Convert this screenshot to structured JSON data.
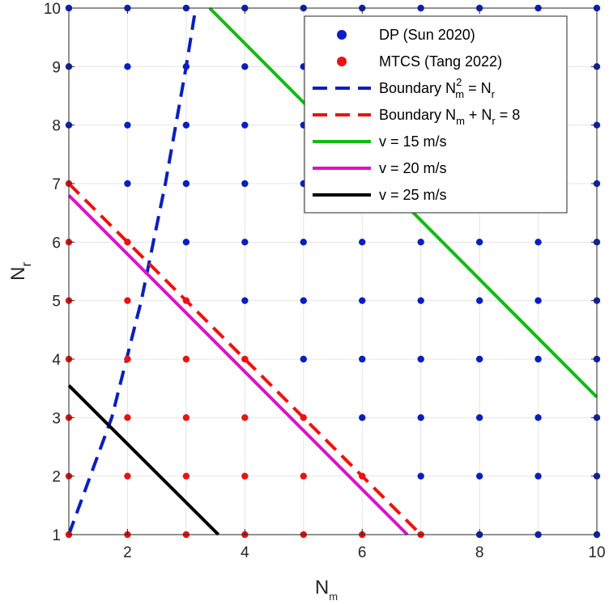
{
  "chart_data": {
    "type": "scatter",
    "title": "",
    "xlabel": {
      "base": "N",
      "sub": "m"
    },
    "ylabel": {
      "base": "N",
      "sub": "r"
    },
    "xlim": [
      1,
      10
    ],
    "ylim": [
      1,
      10
    ],
    "grid": true,
    "legend_position": "top-right",
    "x_ticks": [
      2,
      4,
      6,
      8,
      10
    ],
    "y_ticks": [
      1,
      2,
      3,
      4,
      5,
      6,
      7,
      8,
      9,
      10
    ],
    "x_tick_labels": [
      "2",
      "4",
      "6",
      "8",
      "10"
    ],
    "y_tick_labels": [
      "1",
      "2",
      "3",
      "4",
      "5",
      "6",
      "7",
      "8",
      "9",
      "10"
    ],
    "colors": {
      "dp": "#0a1fbf",
      "mtcs": "#ee1111",
      "boundary_quadratic": "#0a1fbf",
      "boundary_linear": "#ee1111",
      "v15": "#11bb11",
      "v20": "#dd11cc",
      "v25": "#000000"
    },
    "scatter_series": [
      {
        "key": "dp",
        "name": "DP (Sun 2020)",
        "rule": "Nm + Nr > 8",
        "points": [
          [
            8,
            1
          ],
          [
            9,
            1
          ],
          [
            10,
            1
          ],
          [
            7,
            2
          ],
          [
            8,
            2
          ],
          [
            9,
            2
          ],
          [
            10,
            2
          ],
          [
            6,
            3
          ],
          [
            7,
            3
          ],
          [
            8,
            3
          ],
          [
            9,
            3
          ],
          [
            10,
            3
          ],
          [
            5,
            4
          ],
          [
            6,
            4
          ],
          [
            7,
            4
          ],
          [
            8,
            4
          ],
          [
            9,
            4
          ],
          [
            10,
            4
          ],
          [
            4,
            5
          ],
          [
            5,
            5
          ],
          [
            6,
            5
          ],
          [
            7,
            5
          ],
          [
            8,
            5
          ],
          [
            9,
            5
          ],
          [
            10,
            5
          ],
          [
            3,
            6
          ],
          [
            4,
            6
          ],
          [
            5,
            6
          ],
          [
            6,
            6
          ],
          [
            7,
            6
          ],
          [
            8,
            6
          ],
          [
            9,
            6
          ],
          [
            10,
            6
          ],
          [
            2,
            7
          ],
          [
            3,
            7
          ],
          [
            4,
            7
          ],
          [
            5,
            7
          ],
          [
            6,
            7
          ],
          [
            7,
            7
          ],
          [
            8,
            7
          ],
          [
            9,
            7
          ],
          [
            10,
            7
          ],
          [
            1,
            8
          ],
          [
            2,
            8
          ],
          [
            3,
            8
          ],
          [
            4,
            8
          ],
          [
            5,
            8
          ],
          [
            6,
            8
          ],
          [
            7,
            8
          ],
          [
            8,
            8
          ],
          [
            9,
            8
          ],
          [
            10,
            8
          ],
          [
            1,
            9
          ],
          [
            2,
            9
          ],
          [
            3,
            9
          ],
          [
            4,
            9
          ],
          [
            5,
            9
          ],
          [
            6,
            9
          ],
          [
            7,
            9
          ],
          [
            8,
            9
          ],
          [
            9,
            9
          ],
          [
            10,
            9
          ],
          [
            1,
            10
          ],
          [
            2,
            10
          ],
          [
            3,
            10
          ],
          [
            4,
            10
          ],
          [
            5,
            10
          ],
          [
            6,
            10
          ],
          [
            7,
            10
          ],
          [
            8,
            10
          ],
          [
            9,
            10
          ],
          [
            10,
            10
          ]
        ]
      },
      {
        "key": "mtcs",
        "name": "MTCS (Tang 2022)",
        "rule": "Nm + Nr <= 8",
        "points": [
          [
            1,
            1
          ],
          [
            2,
            1
          ],
          [
            3,
            1
          ],
          [
            4,
            1
          ],
          [
            5,
            1
          ],
          [
            6,
            1
          ],
          [
            7,
            1
          ],
          [
            1,
            2
          ],
          [
            2,
            2
          ],
          [
            3,
            2
          ],
          [
            4,
            2
          ],
          [
            5,
            2
          ],
          [
            6,
            2
          ],
          [
            1,
            3
          ],
          [
            2,
            3
          ],
          [
            3,
            3
          ],
          [
            4,
            3
          ],
          [
            5,
            3
          ],
          [
            1,
            4
          ],
          [
            2,
            4
          ],
          [
            3,
            4
          ],
          [
            4,
            4
          ],
          [
            1,
            5
          ],
          [
            2,
            5
          ],
          [
            3,
            5
          ],
          [
            1,
            6
          ],
          [
            2,
            6
          ],
          [
            1,
            7
          ]
        ]
      }
    ],
    "line_series": [
      {
        "key": "boundary_quadratic",
        "name": "Boundary N_m^2 = N_r",
        "style": "dashed",
        "x": [
          1,
          1.732,
          2.236,
          2.646,
          3,
          3.162
        ],
        "y": [
          1,
          3,
          5,
          7,
          9,
          10
        ]
      },
      {
        "key": "boundary_linear",
        "name": "Boundary N_m + N_r = 8",
        "style": "dashed",
        "x": [
          1,
          7
        ],
        "y": [
          7,
          1
        ]
      },
      {
        "key": "v15",
        "name": "v = 15 m/s",
        "style": "solid",
        "x": [
          3.4,
          10
        ],
        "y": [
          10,
          3.35
        ]
      },
      {
        "key": "v20",
        "name": "v = 20 m/s",
        "style": "solid",
        "x": [
          1,
          6.77
        ],
        "y": [
          6.8,
          1
        ]
      },
      {
        "key": "v25",
        "name": "v = 25 m/s",
        "style": "solid",
        "x": [
          1,
          3.55
        ],
        "y": [
          3.55,
          1
        ]
      }
    ],
    "legend": [
      {
        "key": "dp",
        "symbol": "dot",
        "label": "DP (Sun 2020)"
      },
      {
        "key": "mtcs",
        "symbol": "dot",
        "label": "MTCS (Tang 2022)"
      },
      {
        "key": "boundary_quadratic",
        "symbol": "dash",
        "parts": [
          [
            "Boundary N",
            ""
          ],
          [
            "2",
            "sup"
          ],
          [
            "m",
            "sub"
          ],
          [
            " = N",
            ""
          ],
          [
            "r",
            "sub"
          ]
        ]
      },
      {
        "key": "boundary_linear",
        "symbol": "dash",
        "parts": [
          [
            "Boundary N",
            ""
          ],
          [
            "m",
            "sub"
          ],
          [
            " + N",
            ""
          ],
          [
            "r",
            "sub"
          ],
          [
            " = 8",
            ""
          ]
        ]
      },
      {
        "key": "v15",
        "symbol": "line",
        "label": "v = 15 m/s"
      },
      {
        "key": "v20",
        "symbol": "line",
        "label": "v = 20 m/s"
      },
      {
        "key": "v25",
        "symbol": "line",
        "label": "v = 25 m/s"
      }
    ]
  }
}
